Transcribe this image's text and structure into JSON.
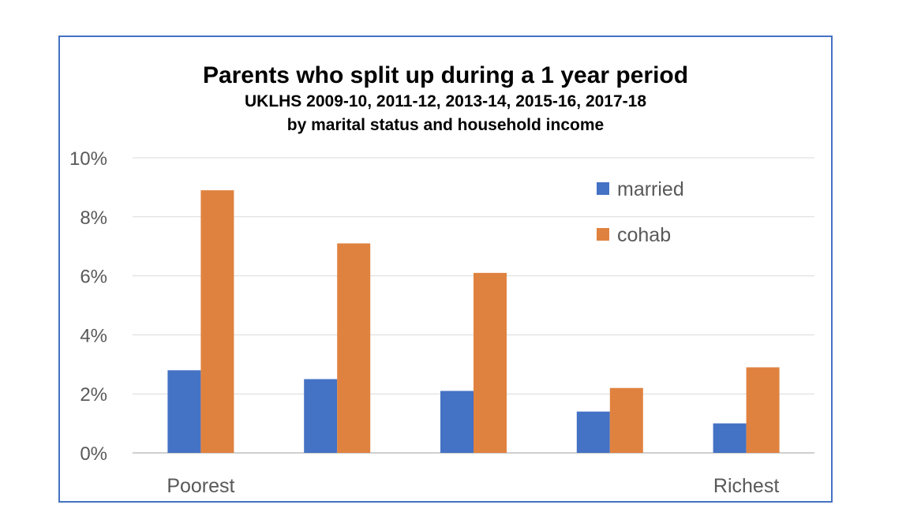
{
  "chart_data": {
    "type": "bar",
    "title": "Parents who split up during a 1 year period",
    "subtitle": [
      "UKLHS 2009-10, 2011-12, 2013-14, 2015-16, 2017-18",
      "by marital status and household income"
    ],
    "categories": [
      "Poorest",
      "",
      "",
      "",
      "Richest"
    ],
    "series": [
      {
        "name": "married",
        "color": "#4472c4",
        "values": [
          2.8,
          2.5,
          2.1,
          1.4,
          1.0
        ]
      },
      {
        "name": "cohab",
        "color": "#e0823f",
        "values": [
          8.9,
          7.1,
          6.1,
          2.2,
          2.9
        ]
      }
    ],
    "ylim": [
      0,
      10
    ],
    "yticks": [
      0,
      2,
      4,
      6,
      8,
      10
    ],
    "ytick_labels": [
      "0%",
      "2%",
      "4%",
      "6%",
      "8%",
      "10%"
    ],
    "xlabel": "",
    "ylabel": "",
    "grid": true,
    "legend_position": "top-right"
  }
}
